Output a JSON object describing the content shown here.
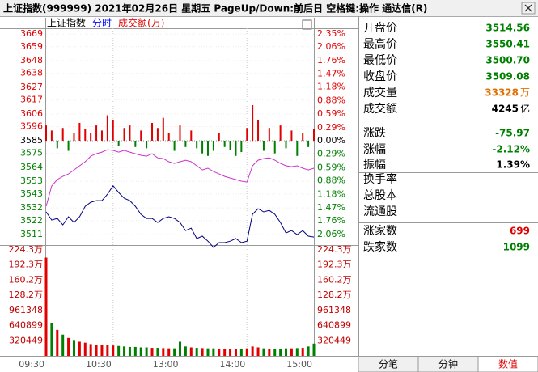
{
  "header": {
    "title": "上证指数(999999)  2021年02月26日 星期五 PageUp/Down:前后日 空格键:操作 通达信(R)"
  },
  "toolbar": {
    "items": [
      {
        "text": "上证指数",
        "color": "#000000"
      },
      {
        "text": "分时",
        "color": "#0000ff"
      },
      {
        "text": "成交额(万)",
        "color": "#e00000"
      }
    ]
  },
  "chart_data": [
    {
      "type": "line",
      "x": [
        0,
        5,
        10,
        15,
        20,
        25,
        30,
        35,
        40,
        45,
        50,
        55,
        60,
        65,
        70,
        75,
        80,
        85,
        90,
        95,
        100,
        105,
        110,
        115,
        120,
        125,
        130,
        135,
        140,
        145,
        150,
        155,
        160,
        165,
        170,
        175,
        180,
        185,
        190,
        195,
        200,
        205,
        210,
        215,
        220,
        225,
        230,
        235,
        240
      ],
      "xlim": [
        0,
        240
      ],
      "xticks": [
        {
          "value": 0,
          "label": "09:30"
        },
        {
          "value": 60,
          "label": "10:30"
        },
        {
          "value": 120,
          "label": "13:00"
        },
        {
          "value": 180,
          "label": "14:00"
        },
        {
          "value": 240,
          "label": "15:00"
        }
      ],
      "ylim": [
        3506,
        3673.5
      ],
      "yticks": [
        3669,
        3659,
        3648,
        3638,
        3627,
        3617,
        3606,
        3596,
        3585,
        3575,
        3564,
        3553,
        3543,
        3532,
        3522,
        3511
      ],
      "y2lim": [
        -2.2,
        2.47
      ],
      "y2ticks": [
        {
          "value": 2.35,
          "label": "2.35%"
        },
        {
          "value": 2.06,
          "label": "2.06%"
        },
        {
          "value": 1.76,
          "label": "1.76%"
        },
        {
          "value": 1.47,
          "label": "1.47%"
        },
        {
          "value": 1.18,
          "label": "1.18%"
        },
        {
          "value": 0.88,
          "label": "0.88%"
        },
        {
          "value": 0.59,
          "label": "0.59%"
        },
        {
          "value": 0.29,
          "label": "0.29%"
        },
        {
          "value": 0,
          "label": "0.00%"
        },
        {
          "value": -0.29,
          "label": "0.29%"
        },
        {
          "value": -0.59,
          "label": "0.59%"
        },
        {
          "value": -0.88,
          "label": "0.88%"
        },
        {
          "value": -1.18,
          "label": "1.18%"
        },
        {
          "value": -1.47,
          "label": "1.47%"
        },
        {
          "value": -1.76,
          "label": "1.76%"
        },
        {
          "value": -2.06,
          "label": "2.06%"
        }
      ],
      "grid": true,
      "series": [
        {
          "type": "line",
          "color": "#000080",
          "values": [
            3528.9,
            3522.5,
            3523.8,
            3518.7,
            3525.1,
            3520.6,
            3525.1,
            3533.3,
            3536.5,
            3537.8,
            3537.8,
            3542.9,
            3549.5,
            3544.2,
            3539.7,
            3537.8,
            3533.3,
            3527.0,
            3523.8,
            3523.8,
            3520.6,
            3523.8,
            3525.1,
            3523.8,
            3520.6,
            3514.2,
            3516.1,
            3507.9,
            3509.8,
            3505.9,
            3501.0,
            3504.7,
            3504.7,
            3505.9,
            3507.9,
            3504.7,
            3505.9,
            3527.0,
            3531.4,
            3528.9,
            3530.1,
            3527.0,
            3520.6,
            3512.3,
            3514.2,
            3511.0,
            3514.2,
            3509.8,
            3509.1
          ]
        },
        {
          "type": "line",
          "color": "#cc33cc",
          "values": [
            3533.3,
            3549.3,
            3554.4,
            3556.9,
            3558.8,
            3562.0,
            3565.2,
            3568.4,
            3572.8,
            3574.7,
            3576.0,
            3577.9,
            3577.3,
            3576.0,
            3577.3,
            3576.0,
            3574.7,
            3573.5,
            3572.8,
            3574.7,
            3571.5,
            3570.9,
            3568.4,
            3567.1,
            3568.4,
            3569.6,
            3568.4,
            3565.2,
            3562.0,
            3563.3,
            3560.7,
            3558.8,
            3556.9,
            3555.6,
            3554.4,
            3553.1,
            3552.4,
            3565.2,
            3569.6,
            3570.9,
            3571.5,
            3569.6,
            3567.1,
            3565.2,
            3564.5,
            3565.2,
            3563.3,
            3562.0,
            3563.3
          ]
        },
        {
          "type": "bar",
          "color_up": "#e00000",
          "color_down": "#008000",
          "values": [
            12,
            8,
            -6,
            10,
            -8,
            6,
            14,
            9,
            6,
            12,
            8,
            20,
            16,
            -4,
            10,
            12,
            -5,
            8,
            -6,
            14,
            10,
            18,
            6,
            -8,
            12,
            -5,
            8,
            -6,
            -10,
            -12,
            -8,
            6,
            -5,
            -7,
            -12,
            -9,
            10,
            28,
            16,
            -8,
            10,
            -10,
            12,
            -6,
            8,
            -12,
            6,
            -5,
            9
          ]
        }
      ]
    },
    {
      "type": "bar",
      "x": [
        0,
        5,
        10,
        15,
        20,
        25,
        30,
        35,
        40,
        45,
        50,
        55,
        60,
        65,
        70,
        75,
        80,
        85,
        90,
        95,
        100,
        105,
        110,
        115,
        120,
        125,
        130,
        135,
        140,
        145,
        150,
        155,
        160,
        165,
        170,
        175,
        180,
        185,
        190,
        195,
        200,
        205,
        210,
        215,
        220,
        225,
        230,
        235,
        240
      ],
      "xlim": [
        0,
        240
      ],
      "ylim": [
        0,
        2346000
      ],
      "yticks": [
        {
          "value": 2243143,
          "label": "224.3万"
        },
        {
          "value": 1922694,
          "label": "192.3万"
        },
        {
          "value": 1602246,
          "label": "160.2万"
        },
        {
          "value": 1281797,
          "label": "128.2万"
        },
        961348,
        640899,
        320449
      ],
      "color_up": "#e00000",
      "color_down": "#008000",
      "values": [
        2080000,
        700000,
        550000,
        450000,
        380000,
        320000,
        300000,
        280000,
        250000,
        240000,
        230000,
        230000,
        220000,
        210000,
        200000,
        190000,
        190000,
        180000,
        180000,
        170000,
        170000,
        165000,
        160000,
        160000,
        300000,
        200000,
        180000,
        170000,
        165000,
        160000,
        160000,
        155000,
        150000,
        150000,
        150000,
        155000,
        160000,
        200000,
        180000,
        160000,
        155000,
        150000,
        155000,
        160000,
        160000,
        165000,
        170000,
        200000,
        260000
      ]
    }
  ],
  "quote": {
    "groups": [
      [
        {
          "label": "开盘价",
          "value": "3514.56",
          "color": "#008000"
        },
        {
          "label": "最高价",
          "value": "3550.41",
          "color": "#008000"
        },
        {
          "label": "最低价",
          "value": "3500.70",
          "color": "#008000"
        },
        {
          "label": "收盘价",
          "value": "3509.08",
          "color": "#008000"
        },
        {
          "label": "成交量",
          "value": "33328",
          "unit": "万",
          "color": "#e07000"
        },
        {
          "label": "成交额",
          "value": "4245",
          "unit": "亿",
          "color": "#000000"
        }
      ],
      [
        {
          "label": "涨跌",
          "value": "-75.97",
          "color": "#008000"
        },
        {
          "label": "涨幅",
          "value": "-2.12%",
          "color": "#008000"
        },
        {
          "label": "振幅",
          "value": "1.39%",
          "color": "#000000"
        }
      ],
      [
        {
          "label": "换手率"
        },
        {
          "label": "总股本"
        },
        {
          "label": "流通股"
        }
      ],
      [
        {
          "label": "涨家数",
          "value": "699",
          "color": "#e00000"
        },
        {
          "label": "跌家数",
          "value": "1099",
          "color": "#008000"
        }
      ]
    ]
  },
  "tabs": {
    "items": [
      "分笔",
      "分钟",
      "数值"
    ],
    "active": 2
  }
}
